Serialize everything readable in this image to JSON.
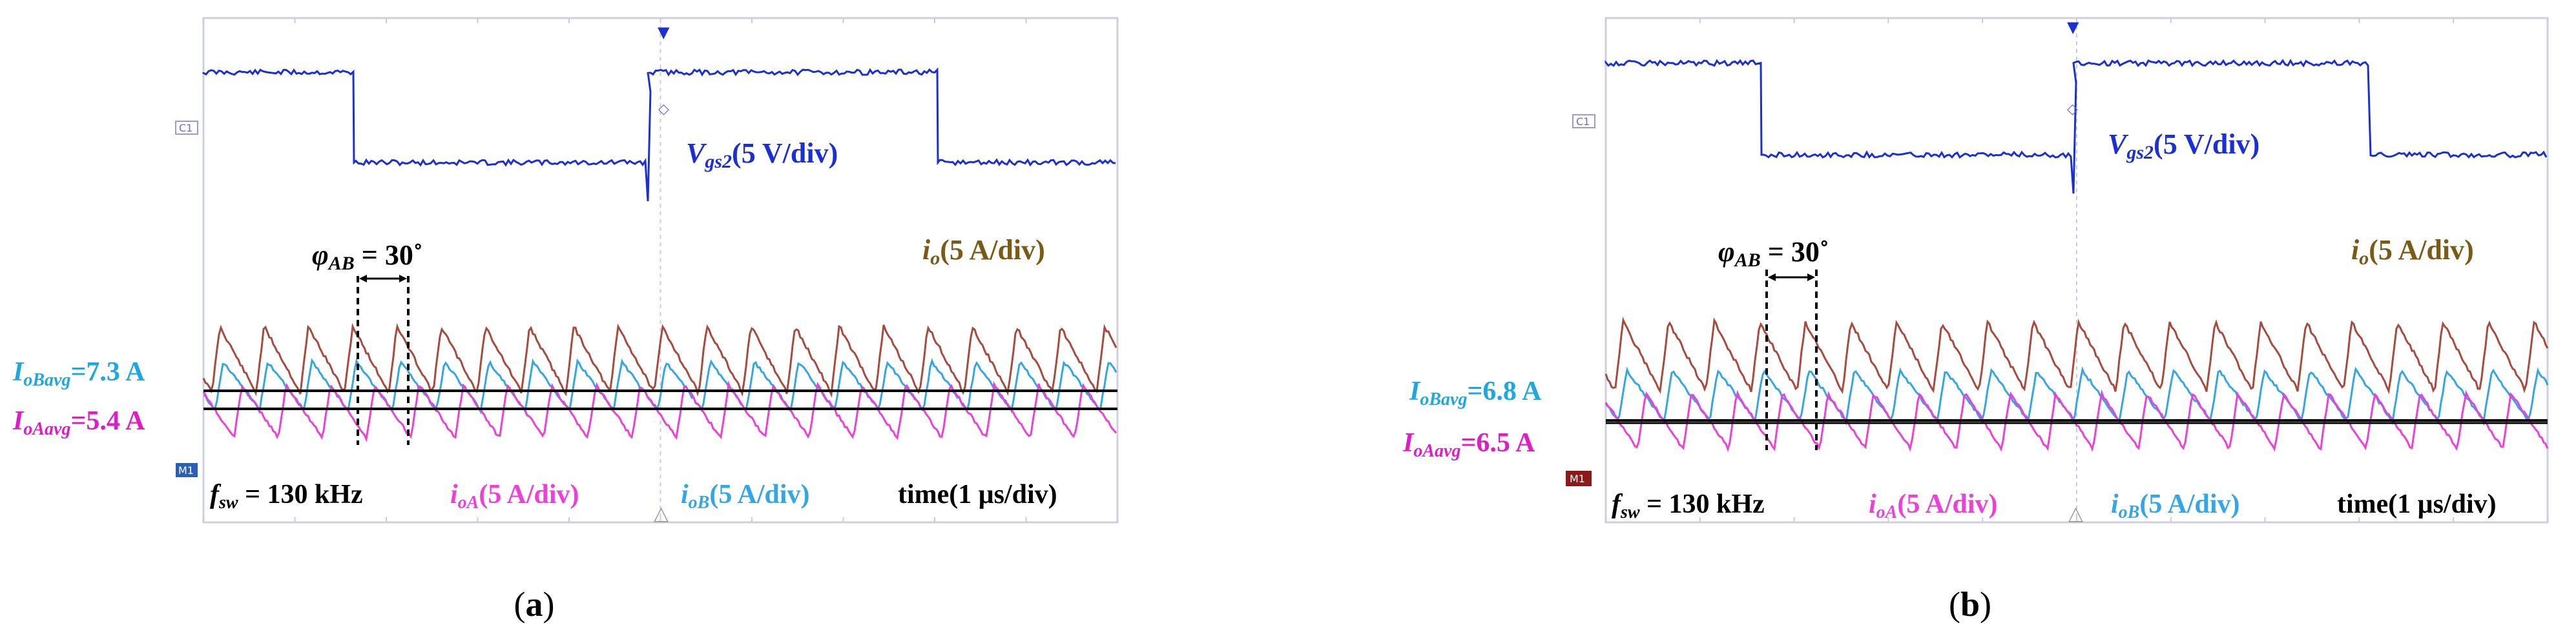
{
  "panels": [
    {
      "caption": "(a)",
      "label_vgs": "V",
      "label_vgs_sub": "gs2",
      "label_vgs_scale": "(5 V/div)",
      "label_io": "i",
      "label_io_sub": "o",
      "label_io_scale": "(5 A/div)",
      "label_phi": "φ",
      "label_phi_sub": "AB",
      "label_phi_val": " = 30˚",
      "label_fsw": "f",
      "label_fsw_sub": "sw",
      "label_fsw_val": " = 130 kHz",
      "label_ioA": "i",
      "label_ioA_sub": "oA",
      "label_ioA_scale": "(5 A/div)",
      "label_ioB": "i",
      "label_ioB_sub": "oB",
      "label_ioB_scale": "(5 A/div)",
      "label_time": "time(1 μs/div)",
      "avg_B": "I",
      "avg_B_sub": "oBavg",
      "avg_B_val": "=7.3 A",
      "avg_A": "I",
      "avg_A_sub": "oAavg",
      "avg_A_val": "=5.4 A",
      "ch_tag": "C1",
      "m_tag": "M1"
    },
    {
      "caption": "(b)",
      "label_vgs": "V",
      "label_vgs_sub": "gs2",
      "label_vgs_scale": "(5 V/div)",
      "label_io": "i",
      "label_io_sub": "o",
      "label_io_scale": "(5 A/div)",
      "label_phi": "φ",
      "label_phi_sub": "AB",
      "label_phi_val": " = 30˚",
      "label_fsw": "f",
      "label_fsw_sub": "sw",
      "label_fsw_val": " = 130 kHz",
      "label_ioA": "i",
      "label_ioA_sub": "oA",
      "label_ioA_scale": "(5 A/div)",
      "label_ioB": "i",
      "label_ioB_sub": "oB",
      "label_ioB_scale": "(5 A/div)",
      "label_time": "time(1 μs/div)",
      "avg_B": "I",
      "avg_B_sub": "oBavg",
      "avg_B_val": "=6.8 A",
      "avg_A": "I",
      "avg_A_sub": "oAavg",
      "avg_A_val": "=6.5 A",
      "ch_tag": "C1",
      "m_tag": "M1"
    }
  ],
  "colors": {
    "vgs": "#1a2fd6",
    "io": "#a84a3e",
    "io_label": "#7a5a14",
    "ioA": "#ee3fd8",
    "ioB": "#33a6e6",
    "avgB_label": "#1fa7e0",
    "avgA_label": "#e01cc6",
    "grid": "#c9c9e6"
  },
  "chart_data": [
    {
      "type": "line",
      "caption": "(a)",
      "switching_frequency_kHz": 130,
      "phase_shift_deg": 30,
      "time_scale": "1 μs/div",
      "series": [
        {
          "name": "Vgs2",
          "scale": "5 V/div"
        },
        {
          "name": "io",
          "scale": "5 A/div"
        },
        {
          "name": "ioA",
          "scale": "5 A/div",
          "average_A": 5.4
        },
        {
          "name": "ioB",
          "scale": "5 A/div",
          "average_A": 7.3
        }
      ]
    },
    {
      "type": "line",
      "caption": "(b)",
      "switching_frequency_kHz": 130,
      "phase_shift_deg": 30,
      "time_scale": "1 μs/div",
      "series": [
        {
          "name": "Vgs2",
          "scale": "5 V/div"
        },
        {
          "name": "io",
          "scale": "5 A/div"
        },
        {
          "name": "ioA",
          "scale": "5 A/div",
          "average_A": 6.5
        },
        {
          "name": "ioB",
          "scale": "5 A/div",
          "average_A": 6.8
        }
      ]
    }
  ]
}
